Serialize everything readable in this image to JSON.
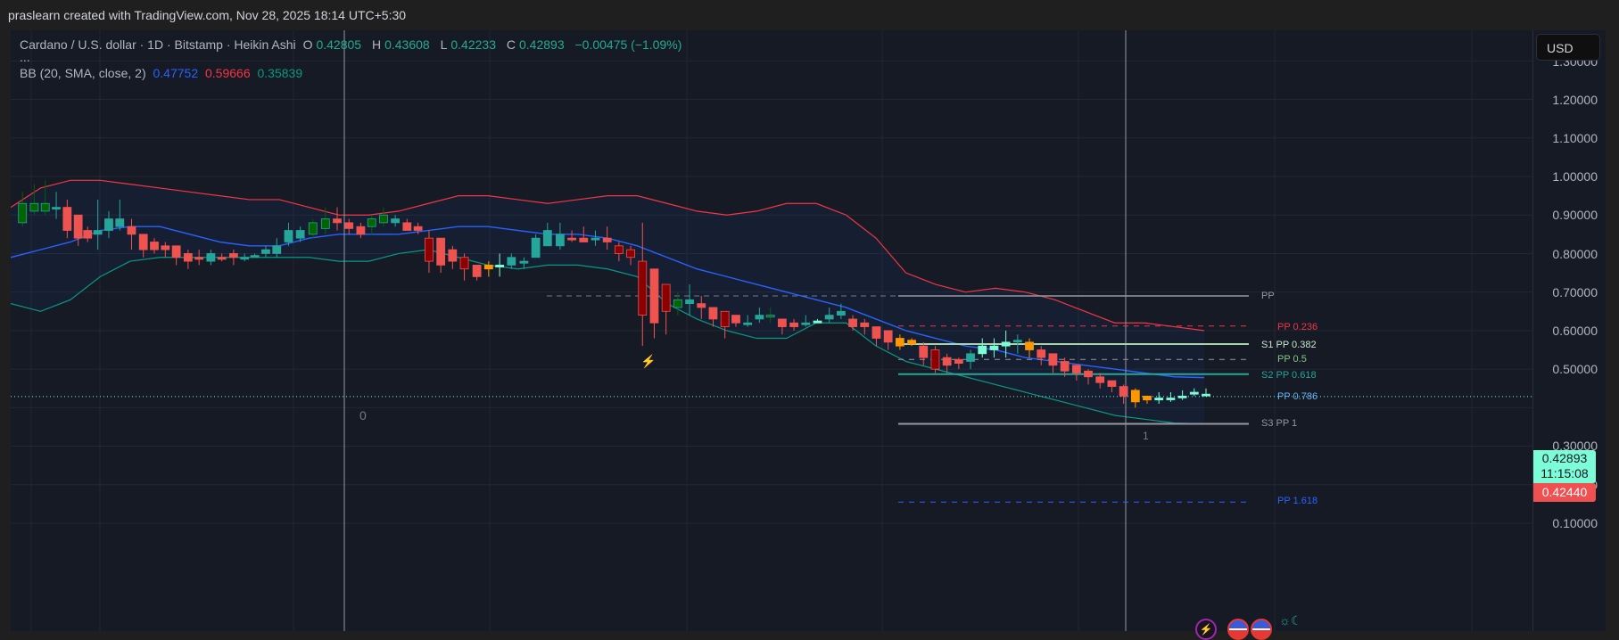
{
  "header": {
    "attribution": "praslearn created with TradingView.com, Nov 28, 2025 18:14 UTC+5:30"
  },
  "legend": {
    "symbol_line": "Cardano / U.S. dollar · 1D · Bitstamp · Heikin Ashi",
    "open_label": "O",
    "open": "0.42805",
    "high_label": "H",
    "high": "0.43608",
    "low_label": "L",
    "low": "0.42233",
    "close_label": "C",
    "close": "0.42893",
    "change": "−0.00475 (−1.09%)",
    "more": "...",
    "bb_label": "BB (20, SMA, close, 2)",
    "bb_basis": "0.47752",
    "bb_upper": "0.59666",
    "bb_lower": "0.35839"
  },
  "price_axis": {
    "currency_button": "USD",
    "ticks": [
      "1.30000",
      "1.20000",
      "1.10000",
      "1.00000",
      "0.90000",
      "0.80000",
      "0.70000",
      "0.60000",
      "0.50000",
      "0.40000",
      "0.30000",
      "0.20000",
      "0.10000"
    ],
    "last_price": "0.42893",
    "countdown": "11:15:08",
    "low_tag": "0.42440"
  },
  "pivot_levels": {
    "pp": "PP",
    "pp_0236": "PP 0.236",
    "s1_0382": "S1 PP 0.382",
    "pp_05": "PP 0.5",
    "s2_0618": "S2 PP 0.618",
    "pp_0786": "PP 0.786",
    "s3_1": "S3 PP 1",
    "pp_1618": "PP 1.618"
  },
  "annotations": {
    "zero_label": "0",
    "candle_marker": "1"
  },
  "colors": {
    "background": "#161a25",
    "up_candle": "#26a69a",
    "down_candle": "#ef5350",
    "bb_basis": "#2962ff",
    "bb_upper": "#f23645",
    "bb_lower": "#089981",
    "last_price_tag": "#7dfcd8",
    "low_tag": "#f05050"
  },
  "chart_data": {
    "type": "candlestick",
    "title": "Cardano / U.S. dollar · 1D · Bitstamp · Heikin Ashi",
    "xlabel": "",
    "ylabel": "USD",
    "ylim": [
      0.05,
      1.33
    ],
    "grid": true,
    "indicator": "Bollinger Bands (20, SMA, close, 2)",
    "series": [
      {
        "name": "BB upper",
        "values": [
          0.92,
          0.97,
          0.99,
          0.99,
          0.98,
          0.97,
          0.96,
          0.95,
          0.94,
          0.94,
          0.92,
          0.9,
          0.9,
          0.91,
          0.93,
          0.95,
          0.95,
          0.94,
          0.93,
          0.94,
          0.95,
          0.95,
          0.93,
          0.91,
          0.9,
          0.91,
          0.93,
          0.93,
          0.9,
          0.84,
          0.75,
          0.72,
          0.7,
          0.71,
          0.7,
          0.68,
          0.65,
          0.62,
          0.62,
          0.61,
          0.6
        ]
      },
      {
        "name": "BB basis",
        "values": [
          0.79,
          0.81,
          0.83,
          0.86,
          0.87,
          0.87,
          0.85,
          0.83,
          0.82,
          0.82,
          0.84,
          0.85,
          0.85,
          0.85,
          0.86,
          0.87,
          0.87,
          0.86,
          0.85,
          0.85,
          0.84,
          0.82,
          0.79,
          0.76,
          0.74,
          0.72,
          0.7,
          0.68,
          0.66,
          0.63,
          0.6,
          0.58,
          0.56,
          0.55,
          0.53,
          0.52,
          0.51,
          0.5,
          0.49,
          0.48,
          0.478
        ]
      },
      {
        "name": "BB lower",
        "values": [
          0.67,
          0.65,
          0.68,
          0.74,
          0.78,
          0.79,
          0.79,
          0.79,
          0.79,
          0.79,
          0.79,
          0.78,
          0.78,
          0.8,
          0.81,
          0.79,
          0.77,
          0.76,
          0.77,
          0.77,
          0.76,
          0.74,
          0.67,
          0.63,
          0.6,
          0.58,
          0.58,
          0.62,
          0.62,
          0.56,
          0.52,
          0.5,
          0.48,
          0.46,
          0.44,
          0.42,
          0.4,
          0.38,
          0.37,
          0.36,
          0.358
        ]
      }
    ],
    "last_price": 0.42893,
    "pivot_levels": {
      "PP": 0.69,
      "PP 0.236": 0.612,
      "S1 PP 0.382": 0.565,
      "PP 0.5": 0.525,
      "S2 PP 0.618": 0.487,
      "PP 0.786": 0.43,
      "S3 PP 1": 0.358,
      "PP 1.618": 0.155
    }
  }
}
